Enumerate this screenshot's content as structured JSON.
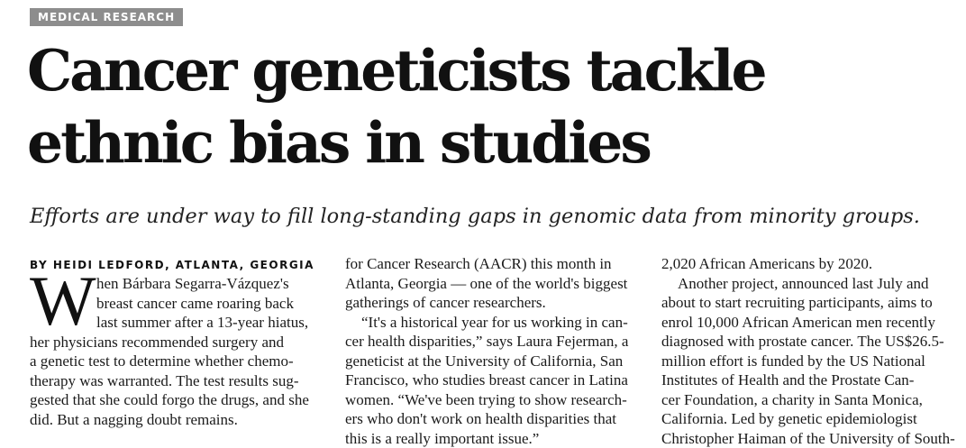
{
  "section_label": "MEDICAL RESEARCH",
  "headline_lines": [
    "Cancer geneticists tackle",
    "ethnic bias in studies"
  ],
  "standfirst": "Efforts are under way to fill long-standing gaps in genomic data from minority groups.",
  "byline": "BY HEIDI LEDFORD, ATLANTA, GEORGIA",
  "dropcap": "W",
  "col1_lines": [
    "hen Bárbara Segarra-Vázquez's",
    "breast cancer came roaring back",
    "last summer after a 13-year hiatus,",
    "her physicians recommended surgery and",
    "a genetic test to determine whether chemo-",
    "therapy was warranted. The test results sug-",
    "gested that she could forgo the drugs, and she",
    "did. But a nagging doubt remains."
  ],
  "col2_lines": [
    "for Cancer Research (AACR) this month in",
    "Atlanta, Georgia — one of the world's biggest",
    "gatherings of cancer researchers.",
    "“It's a historical year for us working in can-",
    "cer health disparities,” says Laura Fejerman, a",
    "geneticist at the University of California, San",
    "Francisco, who studies breast cancer in Latina",
    "women. “We've been trying to show research-",
    "ers who don't work on health disparities that",
    "this is a really important issue.”"
  ],
  "col3_lines": [
    "2,020 African Americans by 2020.",
    "Another project, announced last July and",
    "about to start recruiting participants, aims to",
    "enrol 10,000 African American men recently",
    "diagnosed with prostate cancer. The US$26.5-",
    "million effort is funded by the US National",
    "Institutes of Health and the Prostate Can-",
    "cer Foundation, a charity in Santa Monica,",
    "California. Led by genetic epidemiologist",
    "Christopher Haiman of the University of South-"
  ]
}
